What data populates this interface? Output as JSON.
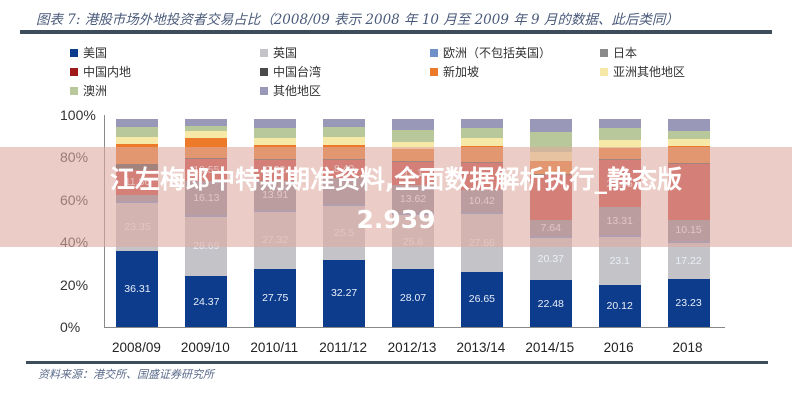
{
  "header": {
    "title": "图表 7: 港股市场外地投资者交易占比（2008/09 表示 2008 年 10 月至 2009 年 9 月的数据、此后类同）"
  },
  "legend": [
    {
      "label": "美国",
      "color": "#0d3c8c"
    },
    {
      "label": "英国",
      "color": "#c4c4c8"
    },
    {
      "label": "欧洲（不包括英国）",
      "color": "#6f8fc8"
    },
    {
      "label": "日本",
      "color": "#8a8a8a"
    },
    {
      "label": "中国内地",
      "color": "#a01818"
    },
    {
      "label": "中国台湾",
      "color": "#4a4a4a"
    },
    {
      "label": "新加坡",
      "color": "#ec7a2a"
    },
    {
      "label": "亚洲其他地区",
      "color": "#f6e8a6"
    },
    {
      "label": "澳洲",
      "color": "#b8c89a"
    },
    {
      "label": "其他地区",
      "color": "#9a98b8"
    }
  ],
  "footer": {
    "source": "资料来源：港交所、国盛证券研究所"
  },
  "overlay": {
    "line1": "江左梅郎中特期期准资料,全面数据解析执行_静态版",
    "line2": "2.939"
  },
  "chart_data": {
    "type": "bar",
    "stacked": true,
    "title": "港股市场外地投资者交易占比",
    "xlabel": "",
    "ylabel": "",
    "ylim": [
      0,
      100
    ],
    "yticks": [
      "0%",
      "20%",
      "40%",
      "60%",
      "80%",
      "100%"
    ],
    "categories": [
      "2008/09",
      "2009/10",
      "2010/11",
      "2011/12",
      "2012/13",
      "2013/14",
      "2014/15",
      "2016",
      "2018"
    ],
    "series": [
      {
        "name": "美国",
        "color": "#0d3c8c",
        "values": [
          36.31,
          24.37,
          27.75,
          32.27,
          28.07,
          26.65,
          22.48,
          20.12,
          23.23
        ]
      },
      {
        "name": "英国",
        "color": "#c4c4c8",
        "values": [
          23.35,
          28.69,
          27.32,
          25.5,
          25.6,
          27.66,
          20.37,
          23.1,
          17.22
        ]
      },
      {
        "name": "欧洲（不包括英国）",
        "color": "#6f8fc8",
        "values": [
          1.0,
          1.0,
          1.0,
          1.0,
          1.0,
          1.0,
          1.0,
          1.0,
          1.0
        ]
      },
      {
        "name": "日本",
        "color": "#8a8a9e",
        "values": [
          3.0,
          16.13,
          13.91,
          12.5,
          13.62,
          10.42,
          7.64,
          13.31,
          10.15
        ]
      },
      {
        "name": "中国内地",
        "color": "#c84040",
        "values": [
          11.86,
          10.55,
          9.92,
          8.49,
          11.1,
          13.0,
          21.5,
          22.55,
          27.0
        ]
      },
      {
        "name": "中国台湾",
        "color": "#4a4a4a",
        "values": [
          3.0,
          0.5,
          0.5,
          0.5,
          0.5,
          0.5,
          0.5,
          0.5,
          0.5
        ]
      },
      {
        "name": "新加坡",
        "color": "#ec7a2a",
        "values": [
          9.5,
          9.5,
          6.5,
          7.0,
          5.5,
          8.0,
          6.5,
          5.5,
          8.0
        ]
      },
      {
        "name": "亚洲其他地区",
        "color": "#f6e8a6",
        "values": [
          3.5,
          3.5,
          3.5,
          3.5,
          3.5,
          3.5,
          4.0,
          4.0,
          3.5
        ]
      },
      {
        "name": "澳洲",
        "color": "#b8c89a",
        "values": [
          4.5,
          2.5,
          5.0,
          5.0,
          6.0,
          5.0,
          10.0,
          5.5,
          3.5
        ]
      },
      {
        "name": "其他地区",
        "color": "#9a98b8",
        "values": [
          3.98,
          3.26,
          4.1,
          3.74,
          5.13,
          4.29,
          6.01,
          4.42,
          5.9
        ]
      }
    ],
    "data_labels_shown": {
      "美国": [
        36.31,
        24.37,
        27.75,
        32.27,
        28.07,
        26.65,
        22.48,
        20.12,
        23.23
      ],
      "英国": [
        23.35,
        28.69,
        27.32,
        25.5,
        25.6,
        27.66,
        20.37,
        23.1,
        17.22
      ],
      "日本": [
        null,
        16.13,
        13.91,
        null,
        13.62,
        10.42,
        7.64,
        13.31,
        10.15
      ],
      "中国内地": [
        11.86,
        10.55,
        9.92,
        8.49,
        11.1,
        null,
        null,
        22.55,
        null
      ]
    },
    "legend_position": "top",
    "grid": false
  }
}
